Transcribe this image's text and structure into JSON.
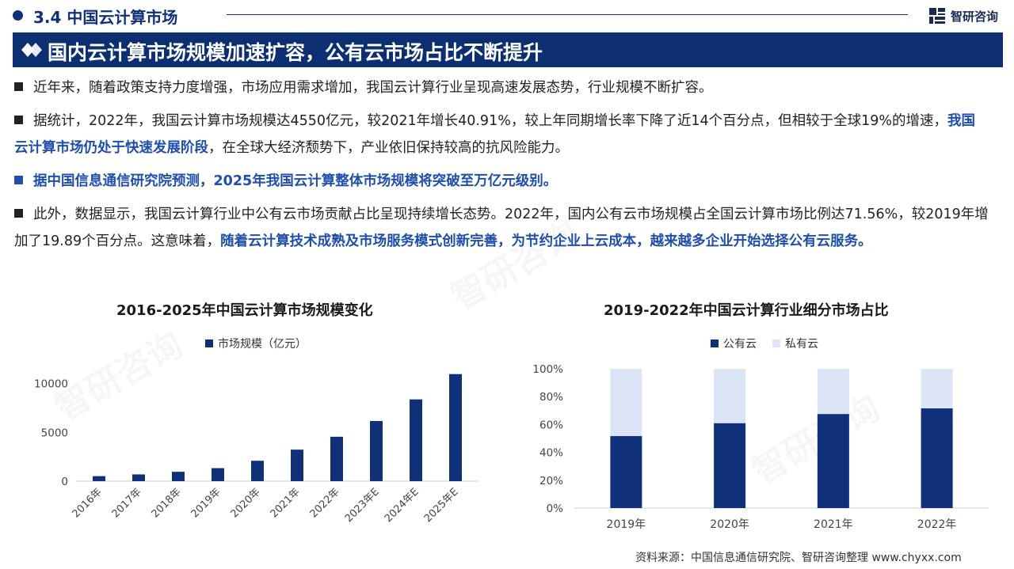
{
  "header": {
    "section": "3.4 中国云计算市场",
    "brand": "智研咨询"
  },
  "banner": {
    "title": "国内云计算市场规模加速扩容，公有云市场占比不断提升"
  },
  "paragraphs": {
    "p1": "近年来，随着政策支持力度增强，市场应用需求增加，我国云计算行业呈现高速发展态势，行业规模不断扩容。",
    "p2_a": "据统计，2022年，我国云计算市场规模达4550亿元，较2021年增长40.91%，较上年同期增长率下降了近14个百分点，但相较于全球19%的增速，",
    "p2_hl": "我国云计算市场仍处于快速发展阶段",
    "p2_b": "，在全球大经济颓势下，产业依旧保持较高的抗风险能力。",
    "p3": "据中国信息通信研究院预测，2025年我国云计算整体市场规模将突破至万亿元级别。",
    "p4_a": "此外，数据显示，我国云计算行业中公有云市场贡献占比呈现持续增长态势。2022年，国内公有云市场规模占全国云计算市场比例达71.56%，较2019年增加了19.89个百分点。这意味着，",
    "p4_hl": "随着云计算技术成熟及市场服务模式创新完善，为节约企业上云成本，越来越多企业开始选择公有云服务。"
  },
  "source": "资料来源：中国信息通信研究院、智研咨询整理 www.chyxx.com",
  "watermark": "智研咨询",
  "colors": {
    "navy": "#0c2f72",
    "bar": "#10307a",
    "private": "#dce5f5",
    "accent_text": "#1f4fa8"
  },
  "chart_data": [
    {
      "type": "bar",
      "title": "2016-2025年中国云计算市场规模变化",
      "categories": [
        "2016年",
        "2017年",
        "2018年",
        "2019年",
        "2020年",
        "2021年",
        "2022年",
        "2023年E",
        "2024年E",
        "2025年E"
      ],
      "series": [
        {
          "name": "市场规模（亿元）",
          "values": [
            515,
            692,
            963,
            1334,
            2091,
            3229,
            4550,
            6165,
            8378,
            10969
          ]
        }
      ],
      "ylim": [
        0,
        12000
      ],
      "yticks": [
        0,
        5000,
        10000
      ],
      "ytick_labels": [
        "0",
        "5000",
        "10000"
      ],
      "legend": "top-center",
      "grid": false
    },
    {
      "type": "bar",
      "stacked": true,
      "title": "2019-2022年中国云计算行业细分市场占比",
      "categories": [
        "2019年",
        "2020年",
        "2021年",
        "2022年"
      ],
      "series": [
        {
          "name": "公有云",
          "values": [
            51.67,
            60.9,
            67.5,
            71.56
          ]
        },
        {
          "name": "私有云",
          "values": [
            48.33,
            39.1,
            32.5,
            28.44
          ]
        }
      ],
      "ylim": [
        0,
        100
      ],
      "yticks": [
        0,
        20,
        40,
        60,
        80,
        100
      ],
      "ytick_labels": [
        "0%",
        "20%",
        "40%",
        "60%",
        "80%",
        "100%"
      ],
      "legend": "top-center",
      "grid": false
    }
  ]
}
